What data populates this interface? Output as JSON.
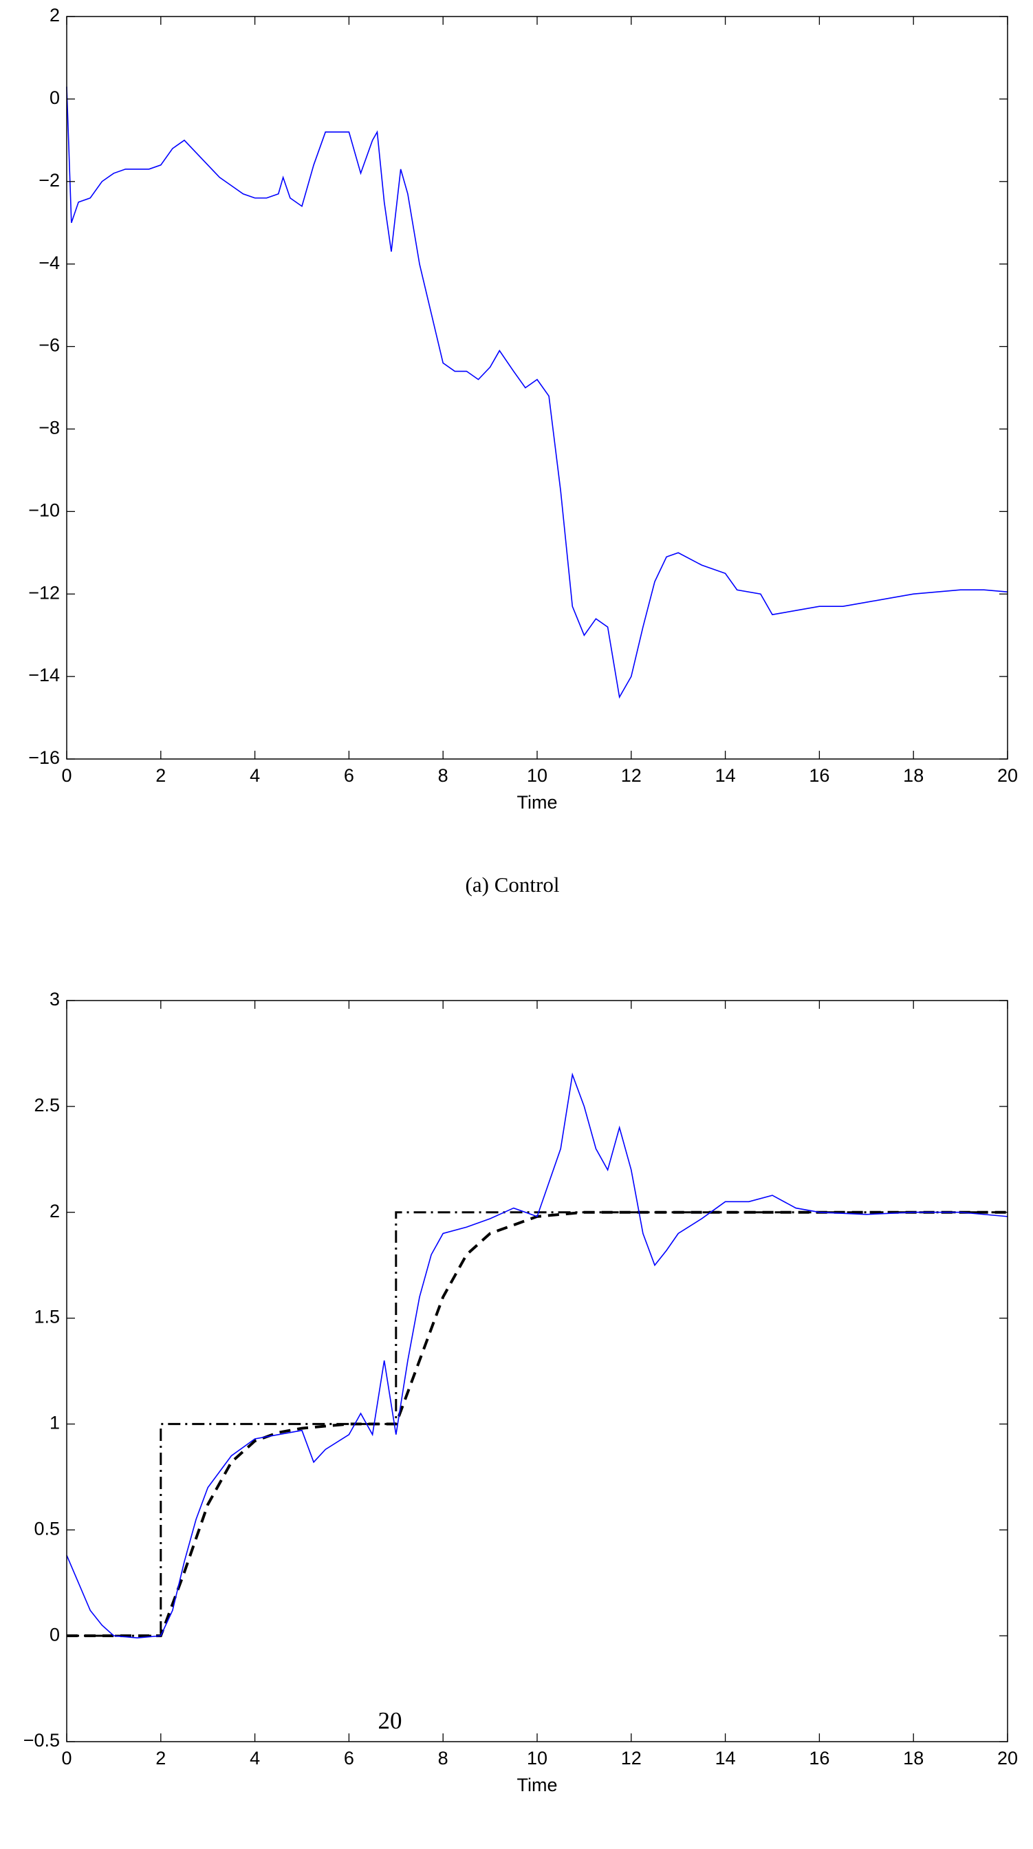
{
  "chart_data": [
    {
      "type": "line",
      "xlabel": "Time",
      "xlim": [
        0,
        20
      ],
      "xticks": [
        0,
        2,
        4,
        6,
        8,
        10,
        12,
        14,
        16,
        18,
        20
      ],
      "ylim": [
        -16,
        2
      ],
      "yticks": [
        {
          "value": -16,
          "label": "−16"
        },
        {
          "value": -14,
          "label": "−14"
        },
        {
          "value": -12,
          "label": "−12"
        },
        {
          "value": -10,
          "label": "−10"
        },
        {
          "value": -8,
          "label": "−8"
        },
        {
          "value": -6,
          "label": "−6"
        },
        {
          "value": -4,
          "label": "−4"
        },
        {
          "value": -2,
          "label": "−2"
        },
        0,
        2
      ],
      "series": [
        {
          "color": "#0000ff",
          "line_style": "solid",
          "x": [
            0,
            0.1,
            0.25,
            0.5,
            0.75,
            1,
            1.25,
            1.5,
            1.75,
            2,
            2.25,
            2.5,
            2.75,
            3,
            3.25,
            3.5,
            3.75,
            4,
            4.25,
            4.5,
            4.6,
            4.75,
            5,
            5.25,
            5.5,
            5.75,
            6,
            6.25,
            6.5,
            6.6,
            6.75,
            6.9,
            7.1,
            7.25,
            7.5,
            7.75,
            8,
            8.25,
            8.5,
            8.75,
            9,
            9.2,
            9.5,
            9.75,
            10,
            10.25,
            10.5,
            10.75,
            11,
            11.25,
            11.5,
            11.75,
            12,
            12.25,
            12.5,
            12.75,
            13,
            13.5,
            14,
            14.25,
            14.75,
            15,
            15.5,
            16,
            16.5,
            17,
            17.5,
            18,
            18.5,
            19,
            19.5,
            20
          ],
          "values": [
            0.3,
            -3.0,
            -2.5,
            -2.4,
            -2.0,
            -1.8,
            -1.7,
            -1.7,
            -1.7,
            -1.6,
            -1.2,
            -1.0,
            -1.3,
            -1.6,
            -1.9,
            -2.1,
            -2.3,
            -2.4,
            -2.4,
            -2.3,
            -1.9,
            -2.4,
            -2.6,
            -1.6,
            -0.8,
            -0.8,
            -0.8,
            -1.8,
            -1.0,
            -0.8,
            -2.5,
            -3.7,
            -1.7,
            -2.3,
            -4.0,
            -5.2,
            -6.4,
            -6.6,
            -6.6,
            -6.8,
            -6.5,
            -6.1,
            -6.6,
            -7.0,
            -6.8,
            -7.2,
            -9.5,
            -12.3,
            -13.0,
            -12.6,
            -12.8,
            -14.5,
            -14.0,
            -12.8,
            -11.7,
            -11.1,
            -11.0,
            -11.3,
            -11.5,
            -11.9,
            -12.0,
            -12.5,
            -12.4,
            -12.3,
            -12.3,
            -12.2,
            -12.1,
            -12.0,
            -11.95,
            -11.9,
            -11.9,
            -11.95
          ]
        }
      ]
    },
    {
      "type": "line",
      "xlabel": "Time",
      "xlim": [
        0,
        20
      ],
      "xticks": [
        0,
        2,
        4,
        6,
        8,
        10,
        12,
        14,
        16,
        18,
        20
      ],
      "ylim": [
        -0.5,
        3
      ],
      "yticks": [
        {
          "value": -0.5,
          "label": "−0.5"
        },
        0,
        0.5,
        1,
        1.5,
        2,
        2.5,
        3
      ],
      "series": [
        {
          "color": "#000000",
          "line_style": "dashdot",
          "x": [
            0,
            2,
            2,
            7,
            7,
            20
          ],
          "values": [
            0,
            0,
            1,
            1,
            2,
            2
          ]
        },
        {
          "color": "#000000",
          "line_style": "dashed",
          "x": [
            0,
            2,
            2.5,
            3,
            3.5,
            4,
            4.5,
            5,
            6,
            7,
            7.5,
            8,
            8.5,
            9,
            10,
            11,
            20
          ],
          "values": [
            0,
            0,
            0.3,
            0.62,
            0.82,
            0.92,
            0.96,
            0.98,
            1.0,
            1.0,
            1.3,
            1.6,
            1.8,
            1.9,
            1.98,
            2.0,
            2.0
          ]
        },
        {
          "color": "#0000ff",
          "line_style": "solid",
          "x": [
            0,
            0.25,
            0.5,
            0.75,
            1,
            1.5,
            2,
            2.25,
            2.5,
            2.75,
            3,
            3.5,
            4,
            4.5,
            5,
            5.25,
            5.5,
            6,
            6.25,
            6.5,
            6.75,
            7,
            7.25,
            7.5,
            7.75,
            8,
            8.5,
            9,
            9.5,
            10,
            10.5,
            10.75,
            11,
            11.25,
            11.5,
            11.75,
            12,
            12.25,
            12.5,
            12.75,
            13,
            13.5,
            14,
            14.5,
            15,
            15.5,
            16,
            17,
            18,
            19,
            20
          ],
          "values": [
            0.38,
            0.25,
            0.12,
            0.05,
            0.0,
            -0.01,
            0.0,
            0.12,
            0.35,
            0.55,
            0.7,
            0.85,
            0.93,
            0.95,
            0.97,
            0.82,
            0.88,
            0.95,
            1.05,
            0.95,
            1.3,
            0.95,
            1.3,
            1.6,
            1.8,
            1.9,
            1.93,
            1.97,
            2.02,
            1.98,
            2.3,
            2.65,
            2.5,
            2.3,
            2.2,
            2.4,
            2.2,
            1.9,
            1.75,
            1.82,
            1.9,
            1.97,
            2.05,
            2.05,
            2.08,
            2.02,
            2.0,
            1.99,
            2.0,
            2.0,
            1.98
          ]
        }
      ]
    }
  ],
  "caption": "(a)  Control",
  "page_number": "20"
}
